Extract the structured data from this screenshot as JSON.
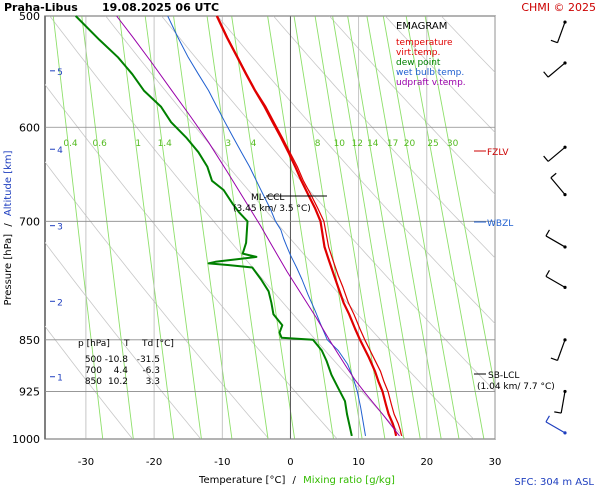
{
  "header": {
    "title": "Praha-Libus",
    "datetime": "19.08.2025 06 UTC",
    "copyright": "CHMI © 2025"
  },
  "legend": {
    "title": "EMAGRAM",
    "entries": [
      {
        "label": "temperature",
        "color": "#e00000"
      },
      {
        "label": "virt.temp.",
        "color": "#e00000"
      },
      {
        "label": "dew point",
        "color": "#008000"
      },
      {
        "label": "wet bulb temp.",
        "color": "#2060d0"
      },
      {
        "label": "udpraft v.temp.",
        "color": "#9900aa"
      }
    ]
  },
  "axes": {
    "xlabel_main": "Temperature [°C]",
    "xlabel_sep": "/",
    "xlabel_mixing": "Mixing ratio [g/kg]",
    "ylabel_pressure": "Pressure [hPa]",
    "ylabel_sep": "/",
    "ylabel_altitude": "Altitude [km]"
  },
  "footer": {
    "sfc": "SFC: 304 m ASL"
  },
  "markers": {
    "fzlv": "FZLV",
    "wbzl": "WBZL",
    "sblcl": "SB-LCL",
    "sblcl_detail": "(1.04 km/ 7.7 °C)",
    "mlccl": "ML-CCL",
    "mlccl_detail": "(3.45 km/ 3.5 °C)"
  },
  "table": {
    "headers": [
      "p [hPa]",
      "T",
      "Td [°C]"
    ],
    "rows": [
      [
        "500",
        "-10.8",
        "-31.5"
      ],
      [
        "700",
        "4.4",
        "-6.3"
      ],
      [
        "850",
        "10.2",
        "3.3"
      ]
    ]
  },
  "chart_data": {
    "type": "line",
    "title": "EMAGRAM",
    "xlabel": "Temperature [°C]",
    "ylabel": "Pressure [hPa]",
    "xlim": [
      -36,
      30
    ],
    "ylim": [
      1000,
      500
    ],
    "y_scale": "log",
    "x_ticks": [
      -30,
      -20,
      -10,
      0,
      10,
      20,
      30
    ],
    "pressure_ticks": [
      500,
      600,
      700,
      850,
      925,
      1000
    ],
    "altitude_ticks_km": [
      {
        "km": 1,
        "p": 903
      },
      {
        "km": 2,
        "p": 798
      },
      {
        "km": 3,
        "p": 705
      },
      {
        "km": 4,
        "p": 622
      },
      {
        "km": 5,
        "p": 547
      }
    ],
    "mixing_ratio_lines": [
      0.4,
      0.6,
      1,
      1.4,
      2,
      3,
      4,
      6,
      8,
      10,
      12,
      14,
      17,
      20,
      25,
      30
    ],
    "mixing_ratio_labels": [
      "0.4",
      "0.6",
      "1",
      "1.4",
      "3",
      "4",
      "8",
      "10",
      "12",
      "14",
      "17",
      "20",
      "25",
      "30"
    ],
    "grid": true,
    "series": [
      {
        "name": "temperature",
        "color": "#e00000",
        "points": [
          [
            15.5,
            995
          ],
          [
            15.3,
            985
          ],
          [
            15.0,
            975
          ],
          [
            14.4,
            960
          ],
          [
            14.0,
            945
          ],
          [
            13.5,
            925
          ],
          [
            12.9,
            910
          ],
          [
            12.4,
            895
          ],
          [
            11.5,
            875
          ],
          [
            10.2,
            850
          ],
          [
            9.5,
            835
          ],
          [
            8.6,
            815
          ],
          [
            7.8,
            800
          ],
          [
            7.0,
            780
          ],
          [
            6.4,
            765
          ],
          [
            5.6,
            745
          ],
          [
            5.0,
            730
          ],
          [
            4.4,
            700
          ],
          [
            3.6,
            685
          ],
          [
            2.6,
            670
          ],
          [
            1.6,
            655
          ],
          [
            0.7,
            640
          ],
          [
            -0.3,
            625
          ],
          [
            -1.4,
            610
          ],
          [
            -2.6,
            595
          ],
          [
            -3.8,
            580
          ],
          [
            -5.2,
            565
          ],
          [
            -6.5,
            550
          ],
          [
            -7.8,
            535
          ],
          [
            -9.3,
            518
          ],
          [
            -10.8,
            500
          ]
        ]
      },
      {
        "name": "virt.temp.",
        "color": "#e00000",
        "points": [
          [
            16.3,
            995
          ],
          [
            16.1,
            985
          ],
          [
            15.8,
            975
          ],
          [
            15.2,
            960
          ],
          [
            14.8,
            945
          ],
          [
            14.3,
            925
          ],
          [
            13.7,
            910
          ],
          [
            13.2,
            895
          ],
          [
            12.2,
            875
          ],
          [
            10.9,
            850
          ],
          [
            10.2,
            835
          ],
          [
            9.3,
            815
          ],
          [
            8.5,
            800
          ],
          [
            7.7,
            780
          ],
          [
            7.0,
            765
          ],
          [
            6.2,
            745
          ],
          [
            5.6,
            730
          ],
          [
            4.9,
            700
          ],
          [
            4.0,
            685
          ],
          [
            3.0,
            670
          ],
          [
            1.9,
            655
          ],
          [
            1.0,
            640
          ],
          [
            -0.1,
            625
          ],
          [
            -1.2,
            610
          ],
          [
            -2.4,
            595
          ],
          [
            -3.6,
            580
          ],
          [
            -5.1,
            565
          ],
          [
            -6.4,
            550
          ],
          [
            -7.7,
            535
          ],
          [
            -9.2,
            518
          ],
          [
            -10.7,
            500
          ]
        ]
      },
      {
        "name": "dew point",
        "color": "#008000",
        "points": [
          [
            9.0,
            995
          ],
          [
            8.7,
            980
          ],
          [
            8.3,
            960
          ],
          [
            8.0,
            940
          ],
          [
            7.0,
            920
          ],
          [
            6.0,
            900
          ],
          [
            5.3,
            880
          ],
          [
            4.6,
            865
          ],
          [
            3.3,
            850
          ],
          [
            -1.3,
            847
          ],
          [
            -1.6,
            840
          ],
          [
            -1.2,
            830
          ],
          [
            -2.5,
            815
          ],
          [
            -2.8,
            800
          ],
          [
            -3.2,
            785
          ],
          [
            -4.3,
            770
          ],
          [
            -5.6,
            755
          ],
          [
            -9.0,
            752
          ],
          [
            -12.0,
            750
          ],
          [
            -11.0,
            748
          ],
          [
            -8.0,
            745
          ],
          [
            -5.0,
            742
          ],
          [
            -7.0,
            738
          ],
          [
            -6.5,
            725
          ],
          [
            -6.3,
            700
          ],
          [
            -7.5,
            690
          ],
          [
            -8.5,
            680
          ],
          [
            -9.8,
            665
          ],
          [
            -11.5,
            655
          ],
          [
            -12.2,
            640
          ],
          [
            -13.5,
            625
          ],
          [
            -15.3,
            610
          ],
          [
            -17.5,
            595
          ],
          [
            -19.0,
            580
          ],
          [
            -21.5,
            565
          ],
          [
            -23.2,
            550
          ],
          [
            -25.3,
            535
          ],
          [
            -28.0,
            520
          ],
          [
            -31.5,
            500
          ]
        ]
      },
      {
        "name": "wet bulb temp.",
        "color": "#2060d0",
        "points": [
          [
            11.0,
            995
          ],
          [
            10.7,
            975
          ],
          [
            10.3,
            950
          ],
          [
            9.8,
            925
          ],
          [
            9.2,
            905
          ],
          [
            8.4,
            885
          ],
          [
            7.0,
            865
          ],
          [
            5.4,
            850
          ],
          [
            4.5,
            830
          ],
          [
            3.6,
            810
          ],
          [
            2.6,
            790
          ],
          [
            1.7,
            770
          ],
          [
            0.9,
            755
          ],
          [
            0.0,
            740
          ],
          [
            -0.5,
            730
          ],
          [
            -1.0,
            720
          ],
          [
            -1.4,
            710
          ],
          [
            -2.2,
            700
          ],
          [
            -3.0,
            685
          ],
          [
            -4.0,
            670
          ],
          [
            -5.0,
            655
          ],
          [
            -6.0,
            640
          ],
          [
            -7.2,
            625
          ],
          [
            -8.4,
            610
          ],
          [
            -9.6,
            595
          ],
          [
            -10.8,
            580
          ],
          [
            -12.0,
            565
          ],
          [
            -13.5,
            550
          ],
          [
            -15.0,
            535
          ],
          [
            -16.5,
            518
          ],
          [
            -18.0,
            500
          ]
        ]
      },
      {
        "name": "udpraft v.temp.",
        "color": "#9900aa",
        "points": [
          [
            16.0,
            995
          ],
          [
            13.5,
            960
          ],
          [
            11.0,
            928
          ],
          [
            9.5,
            908
          ],
          [
            8.3,
            890
          ],
          [
            7.0,
            870
          ],
          [
            5.7,
            850
          ],
          [
            3.8,
            820
          ],
          [
            1.7,
            790
          ],
          [
            -0.5,
            760
          ],
          [
            -2.6,
            730
          ],
          [
            -4.4,
            705
          ],
          [
            -6.8,
            675
          ],
          [
            -9.3,
            645
          ],
          [
            -12.0,
            615
          ],
          [
            -14.6,
            590
          ],
          [
            -17.4,
            565
          ],
          [
            -20.3,
            540
          ],
          [
            -23.2,
            517
          ],
          [
            -25.5,
            500
          ]
        ]
      }
    ]
  },
  "wind_barbs": [
    {
      "p": 990,
      "dir": 300
    },
    {
      "p": 925,
      "dir": 190
    },
    {
      "p": 850,
      "dir": 200
    },
    {
      "p": 780,
      "dir": 300
    },
    {
      "p": 730,
      "dir": 300
    },
    {
      "p": 670,
      "dir": 320
    },
    {
      "p": 620,
      "dir": 230
    },
    {
      "p": 540,
      "dir": 230
    },
    {
      "p": 505,
      "dir": 200
    }
  ]
}
